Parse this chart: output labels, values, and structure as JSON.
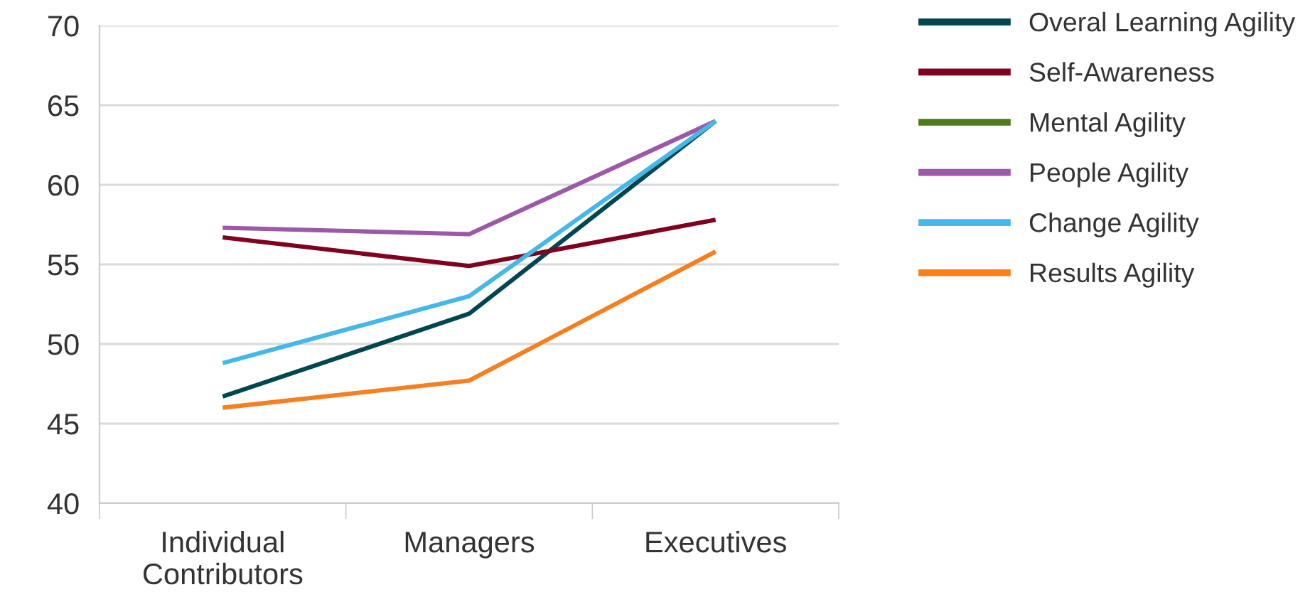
{
  "chart_data": {
    "type": "line",
    "categories": [
      "Individual\nContributors",
      "Managers",
      "Executives"
    ],
    "series": [
      {
        "name": "Overal Learning Agility",
        "color": "#004650",
        "values": [
          46.7,
          51.9,
          64.0
        ]
      },
      {
        "name": "Self-Awareness",
        "color": "#800020",
        "values": [
          56.7,
          54.9,
          57.8
        ]
      },
      {
        "name": "Mental Agility",
        "color": "#4f7a1f",
        "values": [
          null,
          null,
          null
        ]
      },
      {
        "name": "People Agility",
        "color": "#9b59a8",
        "values": [
          57.3,
          56.9,
          64.0
        ]
      },
      {
        "name": "Change Agility",
        "color": "#45b7e8",
        "values": [
          48.8,
          53.0,
          64.0
        ]
      },
      {
        "name": "Results Agility",
        "color": "#f77f1f",
        "values": [
          46.0,
          47.7,
          55.8
        ]
      }
    ],
    "ylim": [
      40,
      70
    ],
    "yticks": [
      40,
      45,
      50,
      55,
      60,
      65,
      70
    ],
    "grid": "y",
    "legend": "right",
    "marker": "none",
    "line_style": "solid"
  }
}
